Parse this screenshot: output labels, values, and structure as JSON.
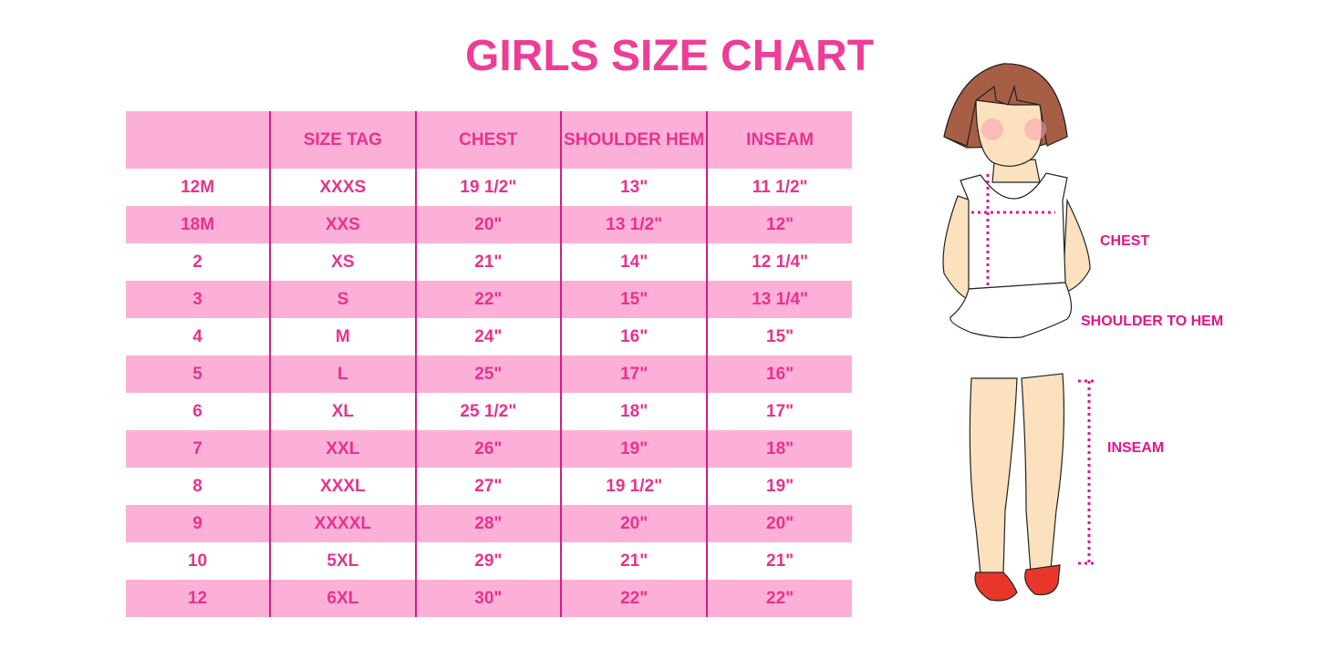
{
  "title": "GIRLS SIZE CHART",
  "table": {
    "headers": [
      "",
      "SIZE TAG",
      "CHEST",
      "SHOULDER HEM",
      "INSEAM"
    ],
    "rows": [
      [
        "12M",
        "XXXS",
        "19 1/2\"",
        "13\"",
        "11 1/2\""
      ],
      [
        "18M",
        "XXS",
        "20\"",
        "13 1/2\"",
        "12\""
      ],
      [
        "2",
        "XS",
        "21\"",
        "14\"",
        "12 1/4\""
      ],
      [
        "3",
        "S",
        "22\"",
        "15\"",
        "13 1/4\""
      ],
      [
        "4",
        "M",
        "24\"",
        "16\"",
        "15\""
      ],
      [
        "5",
        "L",
        "25\"",
        "17\"",
        "16\""
      ],
      [
        "6",
        "XL",
        "25 1/2\"",
        "18\"",
        "17\""
      ],
      [
        "7",
        "XXL",
        "26\"",
        "19\"",
        "18\""
      ],
      [
        "8",
        "XXXL",
        "27\"",
        "19 1/2\"",
        "19\""
      ],
      [
        "9",
        "XXXXL",
        "28\"",
        "20\"",
        "20\""
      ],
      [
        "10",
        "5XL",
        "29\"",
        "21\"",
        "21\""
      ],
      [
        "12",
        "6XL",
        "30\"",
        "22\"",
        "22\""
      ]
    ]
  },
  "illustration": {
    "chest_label": "CHEST",
    "shoulder_label": "SHOULDER TO HEM",
    "inseam_label": "INSEAM"
  },
  "colors": {
    "accent": "#ee3d97",
    "row_pink": "#fcb0d7",
    "divider": "#d61c84"
  }
}
